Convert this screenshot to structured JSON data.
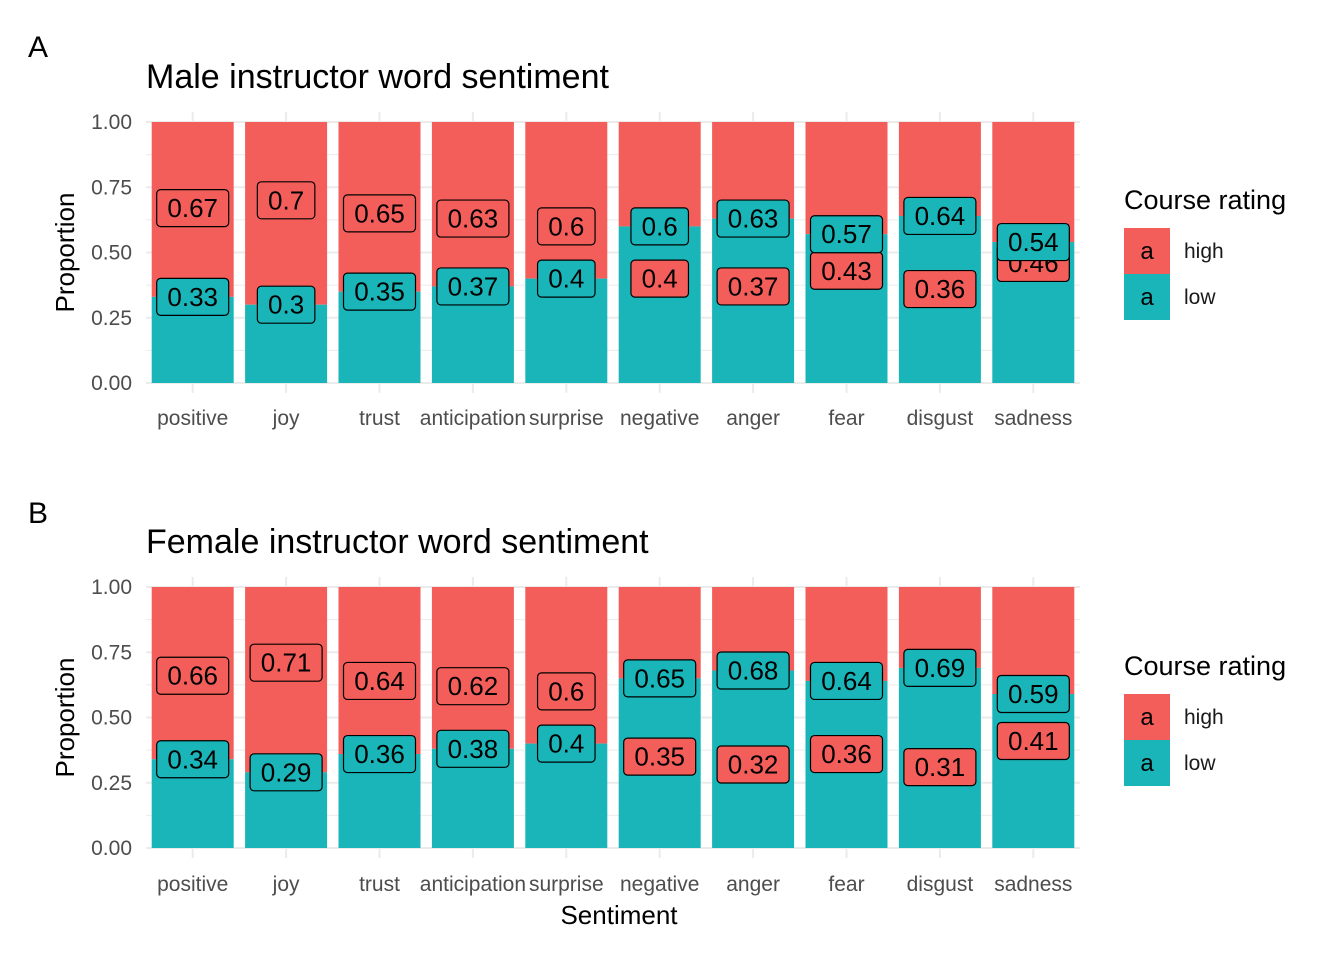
{
  "chart_data": [
    {
      "type": "bar",
      "stacked": true,
      "panel_tag": "A",
      "title": "Male instructor word sentiment",
      "xlabel": "",
      "ylabel": "Proportion",
      "ylim": [
        0,
        1
      ],
      "yticks": [
        "0.00",
        "0.25",
        "0.50",
        "0.75",
        "1.00"
      ],
      "categories": [
        "positive",
        "joy",
        "trust",
        "anticipation",
        "surprise",
        "negative",
        "anger",
        "fear",
        "disgust",
        "sadness"
      ],
      "series": [
        {
          "name": "low",
          "color": "#19b5b8",
          "values": [
            0.33,
            0.3,
            0.35,
            0.37,
            0.4,
            0.6,
            0.63,
            0.57,
            0.64,
            0.54
          ]
        },
        {
          "name": "high",
          "color": "#f35e5a",
          "values": [
            0.67,
            0.7,
            0.65,
            0.63,
            0.6,
            0.4,
            0.37,
            0.43,
            0.36,
            0.46
          ]
        }
      ],
      "legend": {
        "title": "Course rating",
        "key_text": "a",
        "position": "right",
        "entries": [
          "high",
          "low"
        ]
      }
    },
    {
      "type": "bar",
      "stacked": true,
      "panel_tag": "B",
      "title": "Female instructor word sentiment",
      "xlabel": "Sentiment",
      "ylabel": "Proportion",
      "ylim": [
        0,
        1
      ],
      "yticks": [
        "0.00",
        "0.25",
        "0.50",
        "0.75",
        "1.00"
      ],
      "categories": [
        "positive",
        "joy",
        "trust",
        "anticipation",
        "surprise",
        "negative",
        "anger",
        "fear",
        "disgust",
        "sadness"
      ],
      "series": [
        {
          "name": "low",
          "color": "#19b5b8",
          "values": [
            0.34,
            0.29,
            0.36,
            0.38,
            0.4,
            0.65,
            0.68,
            0.64,
            0.69,
            0.59
          ]
        },
        {
          "name": "high",
          "color": "#f35e5a",
          "values": [
            0.66,
            0.71,
            0.64,
            0.62,
            0.6,
            0.35,
            0.32,
            0.36,
            0.31,
            0.41
          ]
        }
      ],
      "legend": {
        "title": "Course rating",
        "key_text": "a",
        "position": "right",
        "entries": [
          "high",
          "low"
        ]
      }
    }
  ]
}
